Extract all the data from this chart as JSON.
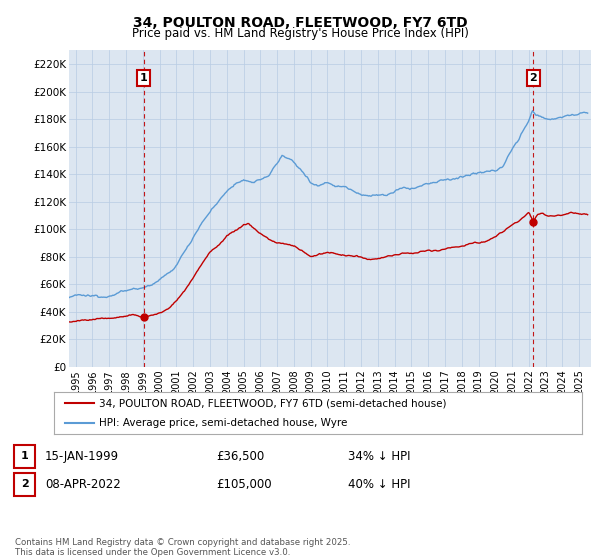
{
  "title": "34, POULTON ROAD, FLEETWOOD, FY7 6TD",
  "subtitle": "Price paid vs. HM Land Registry's House Price Index (HPI)",
  "ylabel_ticks": [
    "£0",
    "£20K",
    "£40K",
    "£60K",
    "£80K",
    "£100K",
    "£120K",
    "£140K",
    "£160K",
    "£180K",
    "£200K",
    "£220K"
  ],
  "ytick_values": [
    0,
    20000,
    40000,
    60000,
    80000,
    100000,
    120000,
    140000,
    160000,
    180000,
    200000,
    220000
  ],
  "ylim": [
    0,
    230000
  ],
  "xlim_start": 1994.6,
  "xlim_end": 2025.7,
  "xtick_years": [
    1995,
    1996,
    1997,
    1998,
    1999,
    2000,
    2001,
    2002,
    2003,
    2004,
    2005,
    2006,
    2007,
    2008,
    2009,
    2010,
    2011,
    2012,
    2013,
    2014,
    2015,
    2016,
    2017,
    2018,
    2019,
    2020,
    2021,
    2022,
    2023,
    2024,
    2025
  ],
  "hpi_color": "#5b9bd5",
  "price_color": "#c00000",
  "chart_bg": "#dce6f1",
  "marker1_date": 1999.04,
  "marker1_price": 36500,
  "marker2_date": 2022.27,
  "marker2_price": 105000,
  "legend_label1": "34, POULTON ROAD, FLEETWOOD, FY7 6TD (semi-detached house)",
  "legend_label2": "HPI: Average price, semi-detached house, Wyre",
  "footer": "Contains HM Land Registry data © Crown copyright and database right 2025.\nThis data is licensed under the Open Government Licence v3.0.",
  "background_color": "#ffffff",
  "grid_color": "#b8cce4",
  "hpi_waypoints": [
    [
      1994.6,
      50000
    ],
    [
      1995.0,
      51000
    ],
    [
      1995.5,
      51500
    ],
    [
      1996.0,
      51000
    ],
    [
      1996.5,
      51500
    ],
    [
      1997.0,
      53000
    ],
    [
      1997.5,
      54000
    ],
    [
      1998.0,
      55000
    ],
    [
      1998.5,
      57000
    ],
    [
      1999.0,
      58000
    ],
    [
      1999.5,
      59500
    ],
    [
      2000.0,
      62000
    ],
    [
      2000.5,
      67000
    ],
    [
      2001.0,
      74000
    ],
    [
      2001.5,
      84000
    ],
    [
      2002.0,
      95000
    ],
    [
      2002.5,
      105000
    ],
    [
      2003.0,
      112000
    ],
    [
      2003.5,
      120000
    ],
    [
      2004.0,
      128000
    ],
    [
      2004.5,
      133000
    ],
    [
      2005.0,
      134000
    ],
    [
      2005.5,
      135000
    ],
    [
      2006.0,
      136000
    ],
    [
      2006.5,
      139000
    ],
    [
      2007.0,
      148000
    ],
    [
      2007.3,
      155000
    ],
    [
      2007.6,
      152000
    ],
    [
      2008.0,
      148000
    ],
    [
      2008.5,
      142000
    ],
    [
      2009.0,
      135000
    ],
    [
      2009.5,
      132000
    ],
    [
      2010.0,
      134000
    ],
    [
      2010.5,
      132000
    ],
    [
      2011.0,
      131000
    ],
    [
      2011.5,
      129000
    ],
    [
      2012.0,
      126000
    ],
    [
      2012.5,
      125000
    ],
    [
      2013.0,
      124000
    ],
    [
      2013.5,
      125000
    ],
    [
      2014.0,
      127000
    ],
    [
      2014.5,
      129000
    ],
    [
      2015.0,
      130000
    ],
    [
      2015.5,
      131000
    ],
    [
      2016.0,
      133000
    ],
    [
      2016.5,
      134000
    ],
    [
      2017.0,
      136000
    ],
    [
      2017.5,
      137000
    ],
    [
      2018.0,
      138000
    ],
    [
      2018.5,
      139000
    ],
    [
      2019.0,
      140000
    ],
    [
      2019.5,
      141000
    ],
    [
      2020.0,
      142000
    ],
    [
      2020.5,
      148000
    ],
    [
      2021.0,
      158000
    ],
    [
      2021.5,
      168000
    ],
    [
      2022.0,
      178000
    ],
    [
      2022.2,
      187000
    ],
    [
      2022.4,
      184000
    ],
    [
      2022.6,
      183000
    ],
    [
      2023.0,
      181000
    ],
    [
      2023.5,
      180000
    ],
    [
      2024.0,
      182000
    ],
    [
      2024.5,
      183000
    ],
    [
      2025.0,
      184000
    ],
    [
      2025.5,
      183000
    ]
  ],
  "price_waypoints": [
    [
      1994.6,
      33000
    ],
    [
      1995.0,
      33500
    ],
    [
      1995.5,
      34000
    ],
    [
      1996.0,
      34500
    ],
    [
      1996.5,
      35000
    ],
    [
      1997.0,
      35500
    ],
    [
      1997.5,
      36000
    ],
    [
      1998.0,
      36500
    ],
    [
      1998.5,
      36800
    ],
    [
      1999.04,
      36500
    ],
    [
      1999.5,
      37500
    ],
    [
      2000.0,
      39000
    ],
    [
      2000.5,
      42000
    ],
    [
      2001.0,
      48000
    ],
    [
      2001.5,
      56000
    ],
    [
      2002.0,
      65000
    ],
    [
      2002.5,
      74000
    ],
    [
      2003.0,
      83000
    ],
    [
      2003.5,
      89000
    ],
    [
      2004.0,
      95000
    ],
    [
      2004.5,
      99000
    ],
    [
      2005.0,
      103000
    ],
    [
      2005.3,
      104000
    ],
    [
      2005.6,
      101000
    ],
    [
      2006.0,
      97000
    ],
    [
      2006.5,
      93000
    ],
    [
      2007.0,
      90000
    ],
    [
      2007.5,
      89000
    ],
    [
      2008.0,
      88000
    ],
    [
      2008.5,
      84000
    ],
    [
      2009.0,
      80000
    ],
    [
      2009.5,
      82000
    ],
    [
      2010.0,
      83000
    ],
    [
      2010.5,
      82000
    ],
    [
      2011.0,
      81000
    ],
    [
      2011.5,
      80000
    ],
    [
      2012.0,
      79000
    ],
    [
      2012.5,
      78000
    ],
    [
      2013.0,
      79000
    ],
    [
      2013.5,
      80000
    ],
    [
      2014.0,
      81000
    ],
    [
      2014.5,
      82000
    ],
    [
      2015.0,
      82500
    ],
    [
      2015.5,
      83000
    ],
    [
      2016.0,
      84000
    ],
    [
      2016.5,
      85000
    ],
    [
      2017.0,
      86000
    ],
    [
      2017.5,
      87000
    ],
    [
      2018.0,
      88000
    ],
    [
      2018.5,
      89000
    ],
    [
      2019.0,
      90000
    ],
    [
      2019.5,
      92000
    ],
    [
      2020.0,
      94000
    ],
    [
      2020.5,
      98000
    ],
    [
      2021.0,
      103000
    ],
    [
      2021.5,
      108000
    ],
    [
      2022.0,
      112000
    ],
    [
      2022.27,
      105000
    ],
    [
      2022.5,
      110000
    ],
    [
      2022.8,
      112000
    ],
    [
      2023.0,
      111000
    ],
    [
      2023.5,
      110000
    ],
    [
      2024.0,
      111000
    ],
    [
      2024.5,
      112000
    ],
    [
      2025.0,
      111000
    ],
    [
      2025.5,
      110500
    ]
  ]
}
